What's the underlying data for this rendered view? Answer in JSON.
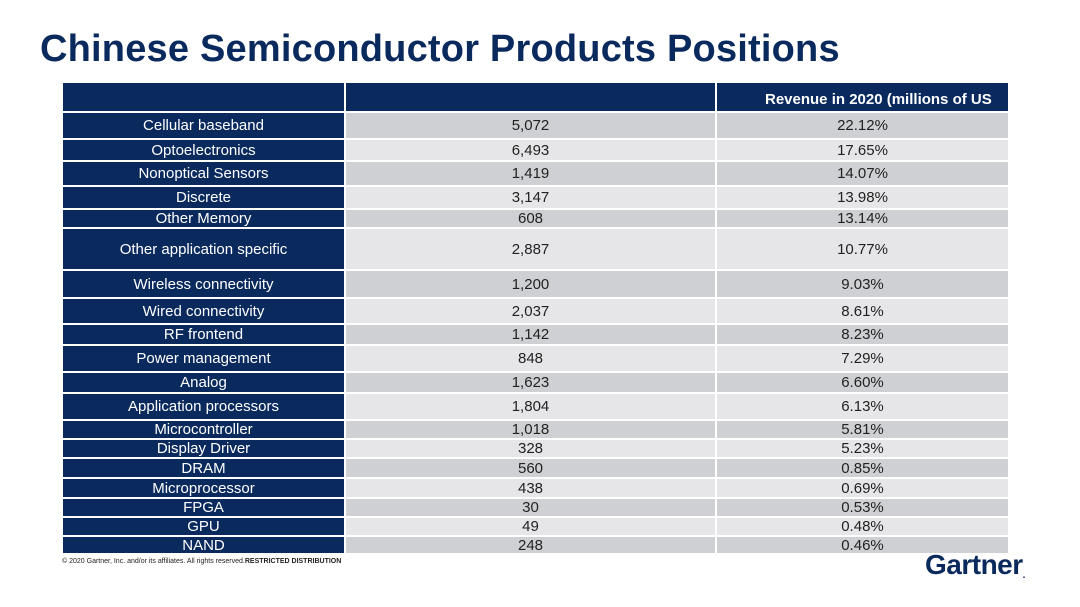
{
  "title": "Chinese Semiconductor Products Positions",
  "table": {
    "headers": [
      "",
      "",
      "Revenue in 2020 (millions of US"
    ],
    "rows": [
      {
        "name": "Cellular baseband",
        "revenue": "5,072",
        "share": "22.12%",
        "h": 27
      },
      {
        "name": "Optoelectronics",
        "revenue": "6,493",
        "share": "17.65%",
        "h": 22
      },
      {
        "name": "Nonoptical Sensors",
        "revenue": "1,419",
        "share": "14.07%",
        "h": 25
      },
      {
        "name": "Discrete",
        "revenue": "3,147",
        "share": "13.98%",
        "h": 23
      },
      {
        "name": "Other Memory",
        "revenue": "608",
        "share": "13.14%",
        "h": 19
      },
      {
        "name": "Other application specific",
        "revenue": "2,887",
        "share": "10.77%",
        "h": 42
      },
      {
        "name": "Wireless connectivity",
        "revenue": "1,200",
        "share": "9.03%",
        "h": 28
      },
      {
        "name": "Wired connectivity",
        "revenue": "2,037",
        "share": "8.61%",
        "h": 26
      },
      {
        "name": "RF frontend",
        "revenue": "1,142",
        "share": "8.23%",
        "h": 21
      },
      {
        "name": "Power management",
        "revenue": "848",
        "share": "7.29%",
        "h": 27
      },
      {
        "name": "Analog",
        "revenue": "1,623",
        "share": "6.60%",
        "h": 21
      },
      {
        "name": "Application processors",
        "revenue": "1,804",
        "share": "6.13%",
        "h": 27
      },
      {
        "name": "Microcontroller",
        "revenue": "1,018",
        "share": "5.81%",
        "h": 19
      },
      {
        "name": "Display Driver",
        "revenue": "328",
        "share": "5.23%",
        "h": 19
      },
      {
        "name": "DRAM",
        "revenue": "560",
        "share": "0.85%",
        "h": 20
      },
      {
        "name": "Microprocessor",
        "revenue": "438",
        "share": "0.69%",
        "h": 20
      },
      {
        "name": "FPGA",
        "revenue": "30",
        "share": "0.53%",
        "h": 19
      },
      {
        "name": "GPU",
        "revenue": "49",
        "share": "0.48%",
        "h": 19
      },
      {
        "name": "NAND",
        "revenue": "248",
        "share": "0.46%",
        "h": 18
      }
    ]
  },
  "footer": {
    "text": "© 2020 Gartner, Inc. and/or its affiliates. All rights reserved.",
    "restricted": "RESTRICTED DISTRIBUTION"
  },
  "logo": {
    "text": "Gartner",
    "mark": "."
  }
}
